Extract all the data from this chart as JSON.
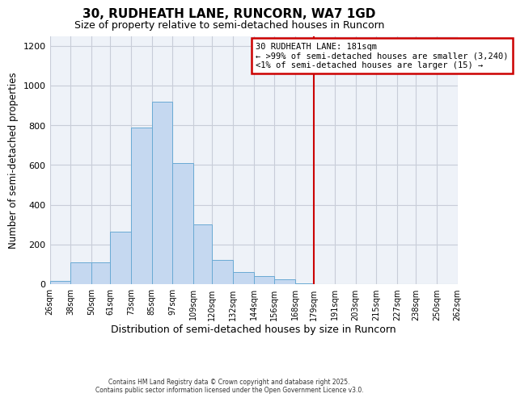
{
  "title": "30, RUDHEATH LANE, RUNCORN, WA7 1GD",
  "subtitle": "Size of property relative to semi-detached houses in Runcorn",
  "xlabel": "Distribution of semi-detached houses by size in Runcorn",
  "ylabel": "Number of semi-detached properties",
  "bar_left_edges": [
    26,
    38,
    50,
    61,
    73,
    85,
    97,
    109,
    120,
    132,
    144,
    156,
    168,
    179,
    191,
    203,
    215,
    227,
    238,
    250
  ],
  "bar_widths": [
    12,
    12,
    11,
    12,
    12,
    12,
    12,
    11,
    12,
    12,
    12,
    12,
    11,
    12,
    12,
    12,
    12,
    11,
    12,
    12
  ],
  "bar_heights": [
    15,
    110,
    110,
    265,
    790,
    920,
    610,
    300,
    120,
    60,
    40,
    25,
    5,
    0,
    0,
    0,
    0,
    0,
    0,
    0
  ],
  "bar_color": "#c5d8f0",
  "bar_edge_color": "#6aaad4",
  "vline_x": 179,
  "vline_color": "#cc0000",
  "ylim": [
    0,
    1250
  ],
  "yticks": [
    0,
    200,
    400,
    600,
    800,
    1000,
    1200
  ],
  "xtick_labels": [
    "26sqm",
    "38sqm",
    "50sqm",
    "61sqm",
    "73sqm",
    "85sqm",
    "97sqm",
    "109sqm",
    "120sqm",
    "132sqm",
    "144sqm",
    "156sqm",
    "168sqm",
    "179sqm",
    "191sqm",
    "203sqm",
    "215sqm",
    "227sqm",
    "238sqm",
    "250sqm",
    "262sqm"
  ],
  "annotation_title": "30 RUDHEATH LANE: 181sqm",
  "annotation_line1": "← >99% of semi-detached houses are smaller (3,240)",
  "annotation_line2": "<1% of semi-detached houses are larger (15) →",
  "annotation_box_color": "#cc0000",
  "background_color": "#ffffff",
  "plot_bg_color": "#eef2f8",
  "grid_color": "#c8cdd8",
  "footer1": "Contains HM Land Registry data © Crown copyright and database right 2025.",
  "footer2": "Contains public sector information licensed under the Open Government Licence v3.0."
}
